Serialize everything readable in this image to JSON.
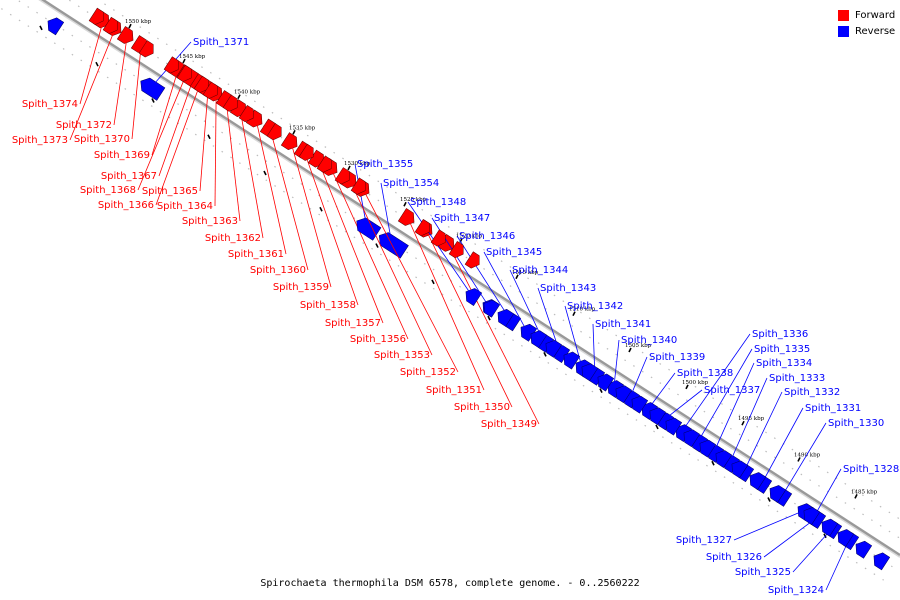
{
  "caption": "Spirochaeta thermophila DSM 6578, complete genome. - 0..2560222",
  "legend": [
    {
      "label": "Forward",
      "color": "#ff0000"
    },
    {
      "label": "Reverse",
      "color": "#0000ff"
    }
  ],
  "colors": {
    "forward": "#ff0000",
    "reverse": "#0000ff",
    "axis": "#999999"
  },
  "axis_unit": "kbp",
  "ticks": [
    1550,
    1545,
    1540,
    1535,
    1530,
    1525,
    1520,
    1515,
    1510,
    1505,
    1500,
    1495,
    1490,
    1485
  ],
  "genes": [
    {
      "name": "Spith_1374",
      "strand": "forward"
    },
    {
      "name": "Spith_1373",
      "strand": "forward"
    },
    {
      "name": "Spith_1372",
      "strand": "forward"
    },
    {
      "name": "Spith_1371",
      "strand": "reverse"
    },
    {
      "name": "Spith_1370",
      "strand": "forward"
    },
    {
      "name": "Spith_1369",
      "strand": "forward"
    },
    {
      "name": "Spith_1368",
      "strand": "forward"
    },
    {
      "name": "Spith_1367",
      "strand": "forward"
    },
    {
      "name": "Spith_1366",
      "strand": "forward"
    },
    {
      "name": "Spith_1365",
      "strand": "forward"
    },
    {
      "name": "Spith_1364",
      "strand": "forward"
    },
    {
      "name": "Spith_1363",
      "strand": "forward"
    },
    {
      "name": "Spith_1362",
      "strand": "forward"
    },
    {
      "name": "Spith_1361",
      "strand": "forward"
    },
    {
      "name": "Spith_1360",
      "strand": "forward"
    },
    {
      "name": "Spith_1359",
      "strand": "forward"
    },
    {
      "name": "Spith_1358",
      "strand": "forward"
    },
    {
      "name": "Spith_1357",
      "strand": "forward"
    },
    {
      "name": "Spith_1356",
      "strand": "forward"
    },
    {
      "name": "Spith_1355",
      "strand": "reverse"
    },
    {
      "name": "Spith_1354",
      "strand": "reverse"
    },
    {
      "name": "Spith_1353",
      "strand": "forward"
    },
    {
      "name": "Spith_1352",
      "strand": "forward"
    },
    {
      "name": "Spith_1351",
      "strand": "forward"
    },
    {
      "name": "Spith_1350",
      "strand": "forward"
    },
    {
      "name": "Spith_1349",
      "strand": "forward"
    },
    {
      "name": "Spith_1348",
      "strand": "reverse"
    },
    {
      "name": "Spith_1347",
      "strand": "reverse"
    },
    {
      "name": "Spith_1346",
      "strand": "reverse"
    },
    {
      "name": "Spith_1345",
      "strand": "reverse"
    },
    {
      "name": "Spith_1344",
      "strand": "reverse"
    },
    {
      "name": "Spith_1343",
      "strand": "reverse"
    },
    {
      "name": "Spith_1342",
      "strand": "reverse"
    },
    {
      "name": "Spith_1341",
      "strand": "reverse"
    },
    {
      "name": "Spith_1340",
      "strand": "reverse"
    },
    {
      "name": "Spith_1339",
      "strand": "reverse"
    },
    {
      "name": "Spith_1338",
      "strand": "reverse"
    },
    {
      "name": "Spith_1337",
      "strand": "reverse"
    },
    {
      "name": "Spith_1336",
      "strand": "reverse"
    },
    {
      "name": "Spith_1335",
      "strand": "reverse"
    },
    {
      "name": "Spith_1334",
      "strand": "reverse"
    },
    {
      "name": "Spith_1333",
      "strand": "reverse"
    },
    {
      "name": "Spith_1332",
      "strand": "reverse"
    },
    {
      "name": "Spith_1331",
      "strand": "reverse"
    },
    {
      "name": "Spith_1330",
      "strand": "reverse"
    },
    {
      "name": "Spith_1328",
      "strand": "reverse"
    },
    {
      "name": "Spith_1327",
      "strand": "reverse"
    },
    {
      "name": "Spith_1326",
      "strand": "reverse"
    },
    {
      "name": "Spith_1325",
      "strand": "reverse"
    },
    {
      "name": "Spith_1324",
      "strand": "reverse"
    }
  ]
}
